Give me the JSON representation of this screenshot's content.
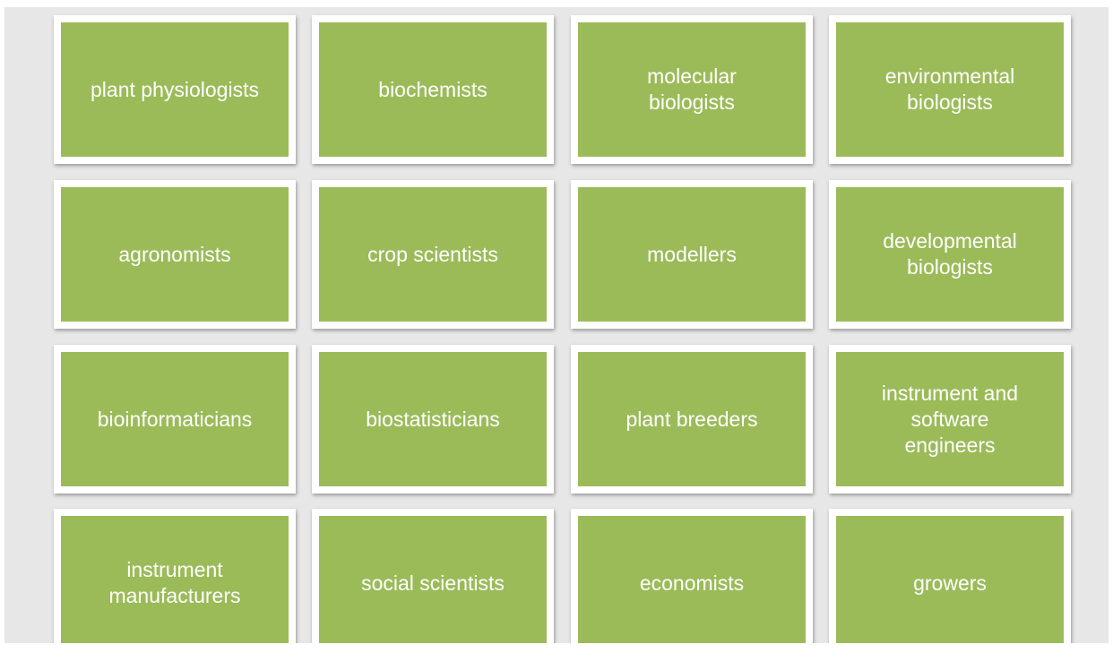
{
  "tiles": [
    {
      "lines": [
        "plant physiologists"
      ]
    },
    {
      "lines": [
        "biochemists"
      ]
    },
    {
      "lines": [
        "molecular",
        "biologists"
      ]
    },
    {
      "lines": [
        "environmental",
        "biologists"
      ]
    },
    {
      "lines": [
        "agronomists"
      ]
    },
    {
      "lines": [
        "crop scientists"
      ]
    },
    {
      "lines": [
        "modellers"
      ]
    },
    {
      "lines": [
        "developmental",
        "biologists"
      ]
    },
    {
      "lines": [
        "bioinformaticians"
      ]
    },
    {
      "lines": [
        "biostatisticians"
      ]
    },
    {
      "lines": [
        "plant breeders"
      ]
    },
    {
      "lines": [
        "instrument and",
        "software",
        "engineers"
      ]
    },
    {
      "lines": [
        "instrument",
        "manufacturers"
      ]
    },
    {
      "lines": [
        "social scientists"
      ]
    },
    {
      "lines": [
        "economists"
      ]
    },
    {
      "lines": [
        "growers"
      ]
    }
  ]
}
